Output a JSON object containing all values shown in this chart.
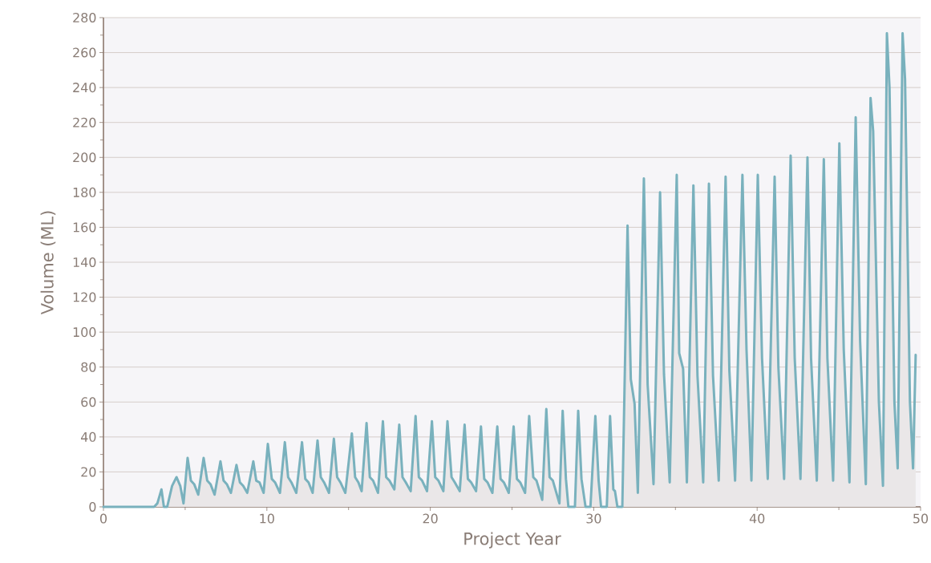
{
  "chart_data": {
    "type": "area",
    "xlabel": "Project Year",
    "ylabel": "Volume (ML)",
    "color": "#79b1bd",
    "x": [
      0,
      3.1,
      3.3,
      3.55,
      3.7,
      3.9,
      4.2,
      4.47,
      4.7,
      4.9,
      5.15,
      5.35,
      5.55,
      5.8,
      6.13,
      6.35,
      6.55,
      6.8,
      7.16,
      7.35,
      7.55,
      7.8,
      8.14,
      8.35,
      8.55,
      8.8,
      9.17,
      9.35,
      9.55,
      9.8,
      10.06,
      10.3,
      10.5,
      10.8,
      11.1,
      11.3,
      11.5,
      11.8,
      12.15,
      12.35,
      12.55,
      12.8,
      13.1,
      13.3,
      13.5,
      13.8,
      14.1,
      14.3,
      14.5,
      14.8,
      15.2,
      15.4,
      15.6,
      15.8,
      16.1,
      16.3,
      16.5,
      16.8,
      17.1,
      17.3,
      17.5,
      17.8,
      18.1,
      18.3,
      18.5,
      18.8,
      19.1,
      19.3,
      19.5,
      19.8,
      20.1,
      20.3,
      20.5,
      20.8,
      21.05,
      21.3,
      21.5,
      21.8,
      22.1,
      22.3,
      22.5,
      22.8,
      23.1,
      23.3,
      23.5,
      23.8,
      24.1,
      24.3,
      24.5,
      24.8,
      25.1,
      25.3,
      25.5,
      25.8,
      26.05,
      26.3,
      26.5,
      26.85,
      27.1,
      27.3,
      27.5,
      27.9,
      28.1,
      28.3,
      28.45,
      28.85,
      29.05,
      29.25,
      29.5,
      29.8,
      30.1,
      30.3,
      30.45,
      30.8,
      31.0,
      31.2,
      31.3,
      31.45,
      31.75,
      32.07,
      32.27,
      32.5,
      32.7,
      33.07,
      33.3,
      33.66,
      34.06,
      34.3,
      34.65,
      35.08,
      35.23,
      35.47,
      35.7,
      36.1,
      36.35,
      36.7,
      37.05,
      37.3,
      37.65,
      38.07,
      38.3,
      38.65,
      39.1,
      39.35,
      39.65,
      40.04,
      40.3,
      40.65,
      41.07,
      41.3,
      41.65,
      42.05,
      42.3,
      42.65,
      43.08,
      43.3,
      43.65,
      44.08,
      44.3,
      44.65,
      45.03,
      45.3,
      45.65,
      46.03,
      46.3,
      46.65,
      46.94,
      47.1,
      47.45,
      47.7,
      47.94,
      48.1,
      48.4,
      48.6,
      48.9,
      49.05,
      49.35,
      49.54,
      49.7
    ],
    "values": [
      0,
      0,
      2,
      10,
      0,
      0,
      12,
      17,
      12,
      2,
      28,
      15,
      13,
      7,
      28,
      15,
      13,
      7,
      26,
      15,
      13,
      8,
      24,
      14,
      12,
      8,
      26,
      15,
      14,
      8,
      36,
      16,
      14,
      8,
      37,
      17,
      14,
      8,
      37,
      16,
      14,
      8,
      38,
      17,
      14,
      8,
      39,
      17,
      14,
      8,
      42,
      17,
      14,
      9,
      48,
      17,
      15,
      8,
      49,
      17,
      15,
      10,
      47,
      17,
      14,
      9,
      52,
      17,
      15,
      9,
      49,
      17,
      15,
      9,
      49,
      17,
      14,
      9,
      47,
      16,
      14,
      9,
      46,
      16,
      14,
      8,
      46,
      16,
      14,
      8,
      46,
      16,
      14,
      8,
      52,
      17,
      15,
      4,
      56,
      17,
      15,
      2,
      55,
      16,
      0,
      0,
      55,
      16,
      0,
      0,
      52,
      15,
      0,
      0,
      52,
      10,
      9,
      0,
      0,
      161,
      73,
      59,
      8,
      188,
      70,
      13,
      180,
      76,
      14,
      190,
      88,
      79,
      14,
      184,
      75,
      14,
      185,
      75,
      15,
      189,
      78,
      15,
      190,
      90,
      15,
      190,
      85,
      16,
      189,
      80,
      16,
      201,
      85,
      16,
      200,
      85,
      15,
      199,
      85,
      15,
      208,
      90,
      14,
      223,
      95,
      13,
      234,
      215,
      60,
      12,
      271,
      240,
      60,
      22,
      271,
      245,
      60,
      22,
      87
    ],
    "xlim": [
      0,
      50
    ],
    "ylim": [
      0,
      280
    ],
    "xticks": [
      0,
      10,
      20,
      30,
      40,
      50
    ],
    "yticks": [
      0,
      20,
      40,
      60,
      80,
      100,
      120,
      140,
      160,
      180,
      200,
      220,
      240,
      260,
      280
    ],
    "grid": "y",
    "marker": "none",
    "line_style": "solid"
  }
}
